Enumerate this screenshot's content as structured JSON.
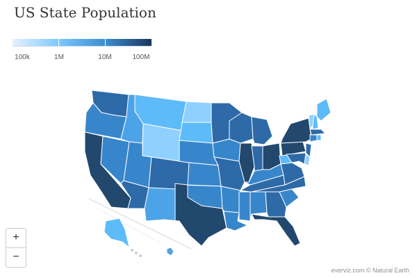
{
  "title": "US State Population",
  "legend": {
    "labels": [
      "100k",
      "1M",
      "10M",
      "100M"
    ],
    "colors": [
      "#e6f2ff",
      "#7cc8ff",
      "#3b8fd3",
      "#1b365c"
    ]
  },
  "zoom": {
    "in_label": "+",
    "out_label": "−"
  },
  "credits": "everviz.com © Natural Earth",
  "colors": {
    "darkest": "#23486e",
    "dark": "#2d6aa7",
    "medium": "#3786cc",
    "medium_light": "#4ca3e8",
    "light": "#5ebbf9",
    "lightest": "#8fd0ff",
    "border": "#ffffff"
  },
  "states": [
    {
      "code": "WA",
      "tier": "dark"
    },
    {
      "code": "OR",
      "tier": "medium"
    },
    {
      "code": "CA",
      "tier": "darkest"
    },
    {
      "code": "NV",
      "tier": "medium"
    },
    {
      "code": "ID",
      "tier": "medium_light"
    },
    {
      "code": "MT",
      "tier": "light"
    },
    {
      "code": "WY",
      "tier": "lightest"
    },
    {
      "code": "UT",
      "tier": "medium"
    },
    {
      "code": "AZ",
      "tier": "dark"
    },
    {
      "code": "CO",
      "tier": "dark"
    },
    {
      "code": "NM",
      "tier": "medium_light"
    },
    {
      "code": "ND",
      "tier": "lightest"
    },
    {
      "code": "SD",
      "tier": "light"
    },
    {
      "code": "NE",
      "tier": "medium"
    },
    {
      "code": "KS",
      "tier": "medium"
    },
    {
      "code": "OK",
      "tier": "medium"
    },
    {
      "code": "TX",
      "tier": "darkest"
    },
    {
      "code": "MN",
      "tier": "dark"
    },
    {
      "code": "IA",
      "tier": "medium"
    },
    {
      "code": "MO",
      "tier": "dark"
    },
    {
      "code": "AR",
      "tier": "medium"
    },
    {
      "code": "LA",
      "tier": "medium"
    },
    {
      "code": "WI",
      "tier": "dark"
    },
    {
      "code": "IL",
      "tier": "darkest"
    },
    {
      "code": "MS",
      "tier": "medium"
    },
    {
      "code": "MI",
      "tier": "dark"
    },
    {
      "code": "IN",
      "tier": "dark"
    },
    {
      "code": "OH",
      "tier": "darkest"
    },
    {
      "code": "KY",
      "tier": "medium"
    },
    {
      "code": "TN",
      "tier": "dark"
    },
    {
      "code": "AL",
      "tier": "medium"
    },
    {
      "code": "GA",
      "tier": "dark"
    },
    {
      "code": "FL",
      "tier": "darkest"
    },
    {
      "code": "SC",
      "tier": "medium"
    },
    {
      "code": "NC",
      "tier": "dark"
    },
    {
      "code": "VA",
      "tier": "dark"
    },
    {
      "code": "WV",
      "tier": "light"
    },
    {
      "code": "PA",
      "tier": "darkest"
    },
    {
      "code": "NY",
      "tier": "darkest"
    },
    {
      "code": "NJ",
      "tier": "dark"
    },
    {
      "code": "ME",
      "tier": "light"
    },
    {
      "code": "VT",
      "tier": "lightest"
    },
    {
      "code": "NH",
      "tier": "light"
    },
    {
      "code": "MA",
      "tier": "dark"
    },
    {
      "code": "CT",
      "tier": "medium"
    },
    {
      "code": "RI",
      "tier": "light"
    },
    {
      "code": "DE",
      "tier": "lightest"
    },
    {
      "code": "MD",
      "tier": "dark"
    },
    {
      "code": "AK",
      "tier": "light"
    },
    {
      "code": "HI",
      "tier": "medium_light"
    }
  ]
}
